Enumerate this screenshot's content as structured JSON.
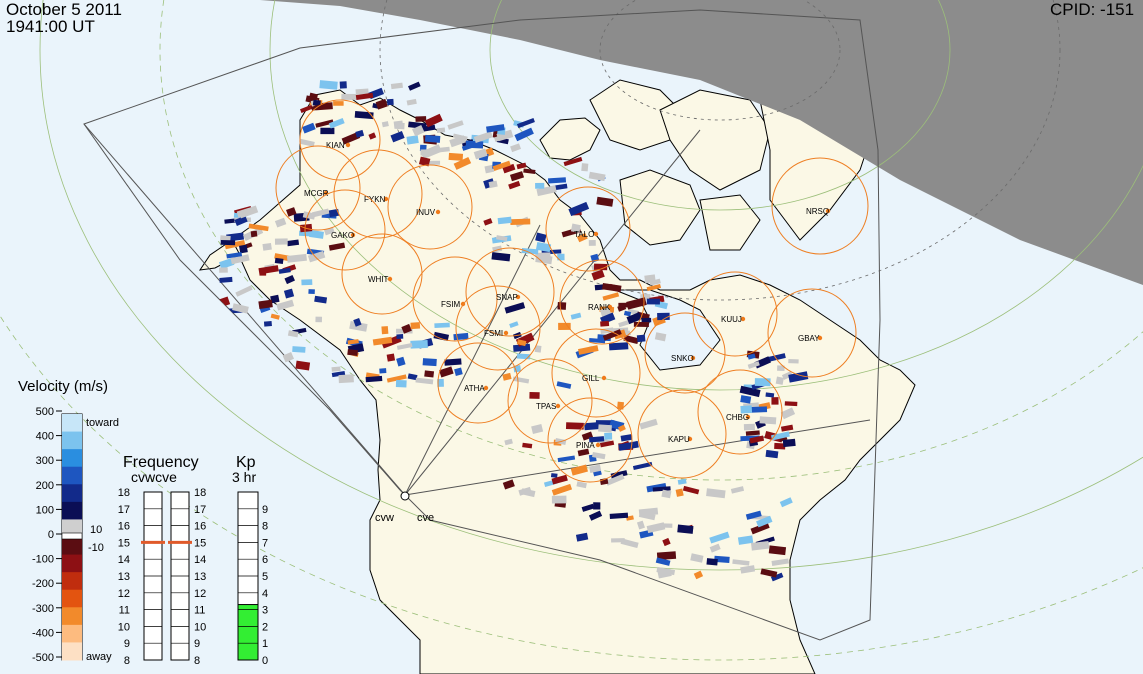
{
  "header": {
    "date": "October  5 2011",
    "time": "1941:00 UT",
    "cpid": "CPID:  -151"
  },
  "colors": {
    "ocean": "#eaf4fb",
    "land": "#fbf8e6",
    "night": "#8c8c8c",
    "fov_line": "#555555",
    "station_ring": "#ee7f23",
    "grid": "#9cbf7a",
    "kp_fill": "#33ee33",
    "freq_marker": "#e05a2a"
  },
  "stations": [
    "KIAN",
    "MCGR",
    "FYKN",
    "INUV",
    "GAKO",
    "WHIT",
    "FSIM",
    "SNAP",
    "FSMI",
    "ATHA",
    "TPAS",
    "GILL",
    "RANK",
    "SNKO",
    "KUUJ",
    "GBAY",
    "CHBG",
    "KAPU",
    "PINA",
    "NRSQ",
    "TALO"
  ],
  "radars": [
    "cvw",
    "cve"
  ],
  "velocity_scale": {
    "title": "Velocity (m/s)",
    "ticks": [
      "500",
      "400",
      "300",
      "200",
      "100",
      "0",
      "-100",
      "-200",
      "-300",
      "-400",
      "-500"
    ],
    "toward_label": "toward",
    "away_label": "away",
    "threshold_pos": "10",
    "threshold_neg": "-10",
    "colors": [
      "#fde0c4",
      "#fdbb7f",
      "#f28a2b",
      "#e35410",
      "#c02d0e",
      "#8d1014",
      "#5b0d12",
      "#cfcfcf",
      "#0b0e55",
      "#122a8a",
      "#1e56c0",
      "#2a8ee0",
      "#7cc3ee",
      "#c7e6f8"
    ]
  },
  "frequency": {
    "title": "Frequency",
    "subtitle": "cvwcve",
    "ticks": [
      "18",
      "17",
      "16",
      "15",
      "14",
      "13",
      "12",
      "11",
      "10",
      "9",
      "8"
    ],
    "cvw_value_mhz": 15,
    "cve_value_mhz": 15
  },
  "kp": {
    "title": "Kp",
    "subtitle": "3 hr",
    "ticks": [
      "9",
      "8",
      "7",
      "6",
      "5",
      "4",
      "3",
      "2",
      "1",
      "0"
    ],
    "value": 3
  }
}
